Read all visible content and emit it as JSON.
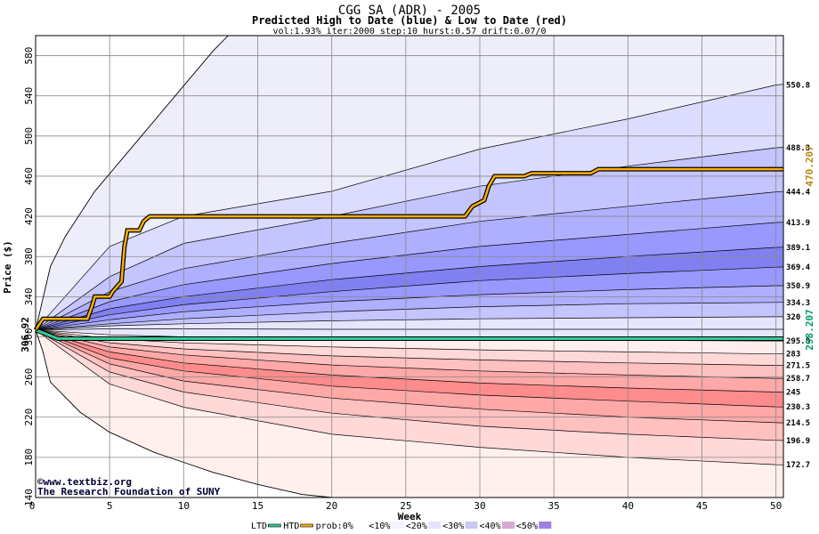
{
  "chart_data": {
    "type": "area",
    "title": "CGG SA (ADR) - 2005",
    "subtitle": "Predicted High to Date (blue) &  Low to Date (red)",
    "params": "vol:1.93% iter:2000 step:10 hurst:0.57 drift:0.07/0",
    "xlabel": "Week",
    "ylabel": "Price ($)",
    "xlim": [
      0,
      50.5
    ],
    "ylim": [
      140,
      600
    ],
    "x_ticks": [
      5,
      10,
      15,
      20,
      25,
      30,
      35,
      40,
      45,
      50
    ],
    "y_ticks": [
      140,
      180,
      220,
      260,
      300,
      340,
      380,
      420,
      460,
      500,
      540,
      580
    ],
    "start_price": 306.92,
    "start_label": "306.92",
    "band_edges_right": [
      {
        "label": "550.8",
        "value": 550.8
      },
      {
        "label": "488.3",
        "value": 488.3
      },
      {
        "label": "444.4",
        "value": 444.4
      },
      {
        "label": "413.9",
        "value": 413.9
      },
      {
        "label": "389.1",
        "value": 389.1
      },
      {
        "label": "369.4",
        "value": 369.4
      },
      {
        "label": "350.9",
        "value": 350.9
      },
      {
        "label": "334.3",
        "value": 334.3
      },
      {
        "label": "320",
        "value": 320
      },
      {
        "label": "295.8",
        "value": 295.8
      },
      {
        "label": "283",
        "value": 283
      },
      {
        "label": "271.5",
        "value": 271.5
      },
      {
        "label": "258.7",
        "value": 258.7
      },
      {
        "label": "245",
        "value": 245
      },
      {
        "label": "230.3",
        "value": 230.3
      },
      {
        "label": "214.5",
        "value": 214.5
      },
      {
        "label": "196.9",
        "value": 196.9
      },
      {
        "label": "172.7",
        "value": 172.7
      }
    ],
    "outer_envelope": {
      "upper": [
        [
          0,
          306.92
        ],
        [
          1,
          370
        ],
        [
          2,
          400
        ],
        [
          4,
          445
        ],
        [
          6,
          480
        ],
        [
          8,
          515
        ],
        [
          10,
          550
        ],
        [
          12,
          585
        ],
        [
          13,
          600
        ]
      ],
      "lower": [
        [
          0,
          306.92
        ],
        [
          0.5,
          285
        ],
        [
          1,
          255
        ],
        [
          2,
          240
        ],
        [
          3,
          225
        ],
        [
          5,
          205
        ],
        [
          8,
          185
        ],
        [
          10,
          175
        ],
        [
          12,
          165
        ],
        [
          15,
          153
        ],
        [
          18,
          143
        ],
        [
          20,
          140
        ]
      ]
    },
    "actual_high": {
      "name": "HTD",
      "color": "#FFB000",
      "final_value": 470.207,
      "final_label": "470.207",
      "points": [
        [
          0,
          306.92
        ],
        [
          0.5,
          318
        ],
        [
          3.5,
          318
        ],
        [
          3.8,
          330
        ],
        [
          4,
          340
        ],
        [
          5,
          340
        ],
        [
          5.2,
          345
        ],
        [
          5.8,
          355
        ],
        [
          6,
          390
        ],
        [
          6.2,
          406
        ],
        [
          7,
          406
        ],
        [
          7.3,
          415
        ],
        [
          7.7,
          420
        ],
        [
          29,
          420
        ],
        [
          29.5,
          430
        ],
        [
          30.3,
          436
        ],
        [
          30.6,
          450
        ],
        [
          31,
          460
        ],
        [
          33,
          460
        ],
        [
          33.5,
          463
        ],
        [
          37.5,
          463
        ],
        [
          38,
          467
        ],
        [
          50.5,
          467
        ]
      ]
    },
    "actual_low": {
      "name": "LTD",
      "color": "#33CC99",
      "final_value": 298.207,
      "final_label": "298.207",
      "points": [
        [
          0,
          306.92
        ],
        [
          1.5,
          298.2
        ],
        [
          50.5,
          298.2
        ]
      ]
    },
    "series": [
      {
        "edge": "high",
        "prob": "0%",
        "color": "#F0F0FF",
        "values_at_x": [
          [
            0,
            306.92
          ],
          [
            5,
            390
          ],
          [
            10,
            420
          ],
          [
            20,
            445
          ],
          [
            30,
            487
          ],
          [
            40,
            517
          ],
          [
            50,
            550.8
          ]
        ]
      },
      {
        "edge": "high",
        "prob": "<10%",
        "color": "#DCDCFF",
        "values_at_x": [
          [
            0,
            306.92
          ],
          [
            5,
            360
          ],
          [
            10,
            393
          ],
          [
            20,
            420
          ],
          [
            30,
            450
          ],
          [
            40,
            470
          ],
          [
            50,
            488.3
          ]
        ]
      },
      {
        "edge": "high",
        "prob": "<20%",
        "color": "#C4C4FF",
        "values_at_x": [
          [
            0,
            306.92
          ],
          [
            5,
            345
          ],
          [
            10,
            368
          ],
          [
            20,
            393
          ],
          [
            30,
            415
          ],
          [
            40,
            430
          ],
          [
            50,
            444.4
          ]
        ]
      },
      {
        "edge": "high",
        "prob": "<30%",
        "color": "#AFAFFF",
        "values_at_x": [
          [
            0,
            306.92
          ],
          [
            5,
            335
          ],
          [
            10,
            352
          ],
          [
            20,
            373
          ],
          [
            30,
            390
          ],
          [
            40,
            402
          ],
          [
            50,
            413.9
          ]
        ]
      },
      {
        "edge": "high",
        "prob": "<40%",
        "color": "#9898FF",
        "values_at_x": [
          [
            0,
            306.92
          ],
          [
            5,
            328
          ],
          [
            10,
            340
          ],
          [
            20,
            357
          ],
          [
            30,
            370
          ],
          [
            40,
            380
          ],
          [
            50,
            389.1
          ]
        ]
      },
      {
        "edge": "high",
        "prob": "<50%",
        "color": "#8080F0",
        "values_at_x": [
          [
            0,
            306.92
          ],
          [
            5,
            322
          ],
          [
            10,
            332
          ],
          [
            20,
            345
          ],
          [
            30,
            356
          ],
          [
            40,
            363
          ],
          [
            50,
            369.4
          ]
        ]
      },
      {
        "edge": "high",
        "prob": "<40%",
        "color": "#9898FF",
        "values_at_x": [
          [
            0,
            306.92
          ],
          [
            5,
            317
          ],
          [
            10,
            325
          ],
          [
            20,
            335
          ],
          [
            30,
            342
          ],
          [
            40,
            347
          ],
          [
            50,
            350.9
          ]
        ]
      },
      {
        "edge": "high",
        "prob": "<30%",
        "color": "#AFAFFF",
        "values_at_x": [
          [
            0,
            306.92
          ],
          [
            5,
            313
          ],
          [
            10,
            318
          ],
          [
            20,
            325
          ],
          [
            30,
            330
          ],
          [
            40,
            333
          ],
          [
            50,
            334.3
          ]
        ]
      },
      {
        "edge": "high",
        "prob": "<20%",
        "color": "#C4C4FF",
        "values_at_x": [
          [
            0,
            306.92
          ],
          [
            5,
            311
          ],
          [
            10,
            313
          ],
          [
            20,
            316
          ],
          [
            30,
            318
          ],
          [
            40,
            319
          ],
          [
            50,
            320
          ]
        ]
      },
      {
        "edge": "high",
        "prob": "<10%",
        "color": "#E6E6FF",
        "values_at_x": [
          [
            0,
            306.92
          ],
          [
            5,
            308
          ],
          [
            10,
            308
          ],
          [
            20,
            307.5
          ],
          [
            30,
            307.5
          ],
          [
            40,
            307.5
          ],
          [
            50,
            307.5
          ]
        ]
      },
      {
        "edge": "low",
        "prob": "<10%",
        "color": "#FFEEEE",
        "values_at_x": [
          [
            0,
            306.92
          ],
          [
            5,
            302
          ],
          [
            10,
            300
          ],
          [
            20,
            298.5
          ],
          [
            30,
            297.5
          ],
          [
            40,
            296.5
          ],
          [
            50,
            295.8
          ]
        ]
      },
      {
        "edge": "low",
        "prob": "<20%",
        "color": "#FFD8D8",
        "values_at_x": [
          [
            0,
            306.92
          ],
          [
            5,
            298
          ],
          [
            10,
            294
          ],
          [
            20,
            290
          ],
          [
            30,
            287
          ],
          [
            40,
            285
          ],
          [
            50,
            283
          ]
        ]
      },
      {
        "edge": "low",
        "prob": "<30%",
        "color": "#FFC0C0",
        "values_at_x": [
          [
            0,
            306.92
          ],
          [
            5,
            294
          ],
          [
            10,
            288
          ],
          [
            20,
            281
          ],
          [
            30,
            277
          ],
          [
            40,
            274
          ],
          [
            50,
            271.5
          ]
        ]
      },
      {
        "edge": "low",
        "prob": "<40%",
        "color": "#FFA8A8",
        "values_at_x": [
          [
            0,
            306.92
          ],
          [
            5,
            290
          ],
          [
            10,
            282
          ],
          [
            20,
            272
          ],
          [
            30,
            266
          ],
          [
            40,
            262
          ],
          [
            50,
            258.7
          ]
        ]
      },
      {
        "edge": "low",
        "prob": "<50%",
        "color": "#FF8C8C",
        "values_at_x": [
          [
            0,
            306.92
          ],
          [
            5,
            285
          ],
          [
            10,
            274
          ],
          [
            20,
            262
          ],
          [
            30,
            254
          ],
          [
            40,
            249
          ],
          [
            50,
            245
          ]
        ]
      },
      {
        "edge": "low",
        "prob": "<40%",
        "color": "#FFA8A8",
        "values_at_x": [
          [
            0,
            306.92
          ],
          [
            5,
            279
          ],
          [
            10,
            266
          ],
          [
            20,
            251
          ],
          [
            30,
            242
          ],
          [
            40,
            236
          ],
          [
            50,
            230.3
          ]
        ]
      },
      {
        "edge": "low",
        "prob": "<30%",
        "color": "#FFC0C0",
        "values_at_x": [
          [
            0,
            306.92
          ],
          [
            5,
            273
          ],
          [
            10,
            256
          ],
          [
            20,
            239
          ],
          [
            30,
            228
          ],
          [
            40,
            220
          ],
          [
            50,
            214.5
          ]
        ]
      },
      {
        "edge": "low",
        "prob": "<20%",
        "color": "#FFD8D8",
        "values_at_x": [
          [
            0,
            306.92
          ],
          [
            5,
            265
          ],
          [
            10,
            245
          ],
          [
            20,
            224
          ],
          [
            30,
            211
          ],
          [
            40,
            203
          ],
          [
            50,
            196.9
          ]
        ]
      },
      {
        "edge": "low",
        "prob": "<10%",
        "color": "#FFEEEE",
        "values_at_x": [
          [
            0,
            306.92
          ],
          [
            5,
            253
          ],
          [
            10,
            230
          ],
          [
            20,
            203
          ],
          [
            30,
            190
          ],
          [
            40,
            180
          ],
          [
            50,
            172.7
          ]
        ]
      }
    ],
    "legend": {
      "items": [
        {
          "label": "LTD",
          "color": "#33CC99"
        },
        {
          "label": "HTD",
          "color": "#FFB000"
        },
        {
          "label": "prob:0%",
          "color": "#FFFFFF"
        },
        {
          "label": "<10%",
          "color": "#F3F3FF"
        },
        {
          "label": "<20%",
          "color": "#E4E4FF"
        },
        {
          "label": "<30%",
          "color": "#C8C8F0"
        },
        {
          "label": "<40%",
          "color": "#D8A8D0"
        },
        {
          "label": "<50%",
          "color": "#A080E0"
        }
      ],
      "placement": "bottom-center"
    },
    "grid": true
  },
  "credits": {
    "line1": "©www.textbiz.org",
    "line2": "The Research Foundation of SUNY"
  }
}
